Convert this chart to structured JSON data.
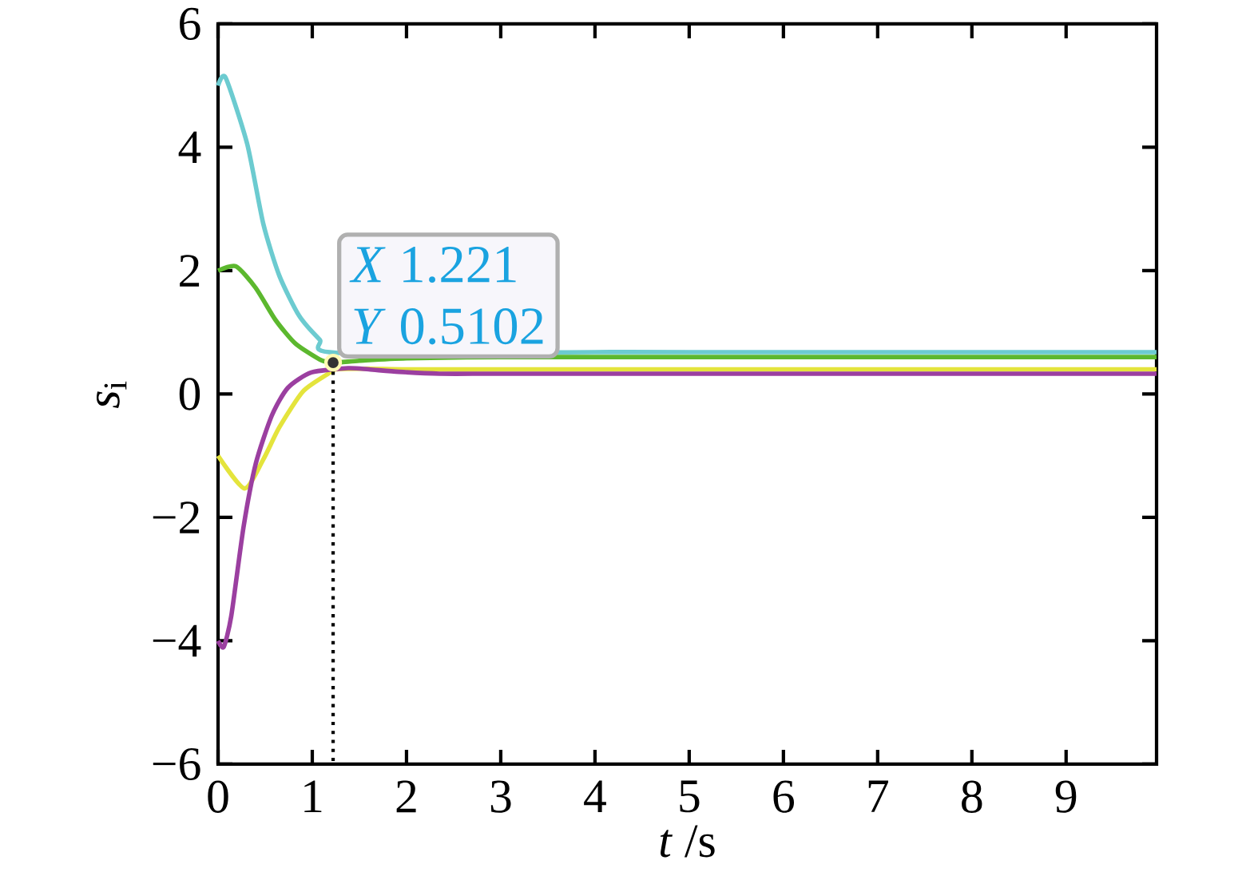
{
  "chart_data": {
    "type": "line",
    "xlabel": "*t* /s",
    "ylabel": "*s*$_{i}$",
    "xlim": [
      0,
      9.96
    ],
    "ylim": [
      -6,
      6
    ],
    "xticks": [
      0,
      1,
      2,
      3,
      4,
      5,
      6,
      7,
      8,
      9
    ],
    "yticks": [
      {
        "value": -6,
        "label": "−6"
      },
      {
        "value": -4,
        "label": "−4"
      },
      {
        "value": -2,
        "label": "−2"
      },
      0,
      2,
      4,
      6
    ],
    "grid": false,
    "marker": "none",
    "line_style": "solid",
    "series": [
      {
        "color": "#6ccbd0",
        "x": [
          0,
          0.08,
          0.31,
          0.48,
          0.65,
          0.86,
          1.08,
          1.25,
          1.5,
          2,
          3,
          4,
          5,
          9.96
        ],
        "values": [
          5.0,
          5.13,
          4.05,
          2.76,
          1.92,
          1.27,
          0.88,
          0.67,
          null,
          null,
          null,
          0.68,
          0.68,
          0.68
        ]
      },
      {
        "color": "#5cb82e",
        "x": [
          0,
          0.19,
          0.4,
          0.61,
          0.82,
          1.08,
          1.221,
          1.5,
          2,
          3,
          5,
          9.96
        ],
        "values": [
          2.0,
          2.07,
          1.72,
          1.2,
          0.82,
          0.56,
          0.51,
          0.54,
          0.58,
          0.6,
          0.6,
          0.6
        ]
      },
      {
        "color": "#e4e43c",
        "x": [
          0,
          0.28,
          0.48,
          0.65,
          0.9,
          1.16,
          1.25,
          1.6,
          2,
          3,
          5,
          9.96
        ],
        "values": [
          -1.0,
          -1.53,
          -1.06,
          -0.54,
          0.04,
          0.32,
          0.4,
          0.41,
          0.4,
          0.4,
          0.4,
          0.4
        ]
      },
      {
        "color": "#9b3fa0",
        "x": [
          0,
          0.06,
          0.14,
          0.27,
          0.4,
          0.57,
          0.74,
          0.99,
          1.38,
          1.6,
          1.92,
          2.35,
          3,
          5,
          9.96
        ],
        "values": [
          -4.0,
          -4.1,
          -3.6,
          -2.16,
          -1.13,
          -0.35,
          0.1,
          0.35,
          0.42,
          0.4,
          0.36,
          0.33,
          0.33,
          0.33,
          0.33
        ]
      }
    ],
    "annotations": [
      {
        "text": "*X* 1.221",
        "x": 1.221,
        "y": 0.5102
      },
      {
        "text": "*Y* 0.5102",
        "x": 1.221,
        "y": 0.5102
      }
    ]
  }
}
